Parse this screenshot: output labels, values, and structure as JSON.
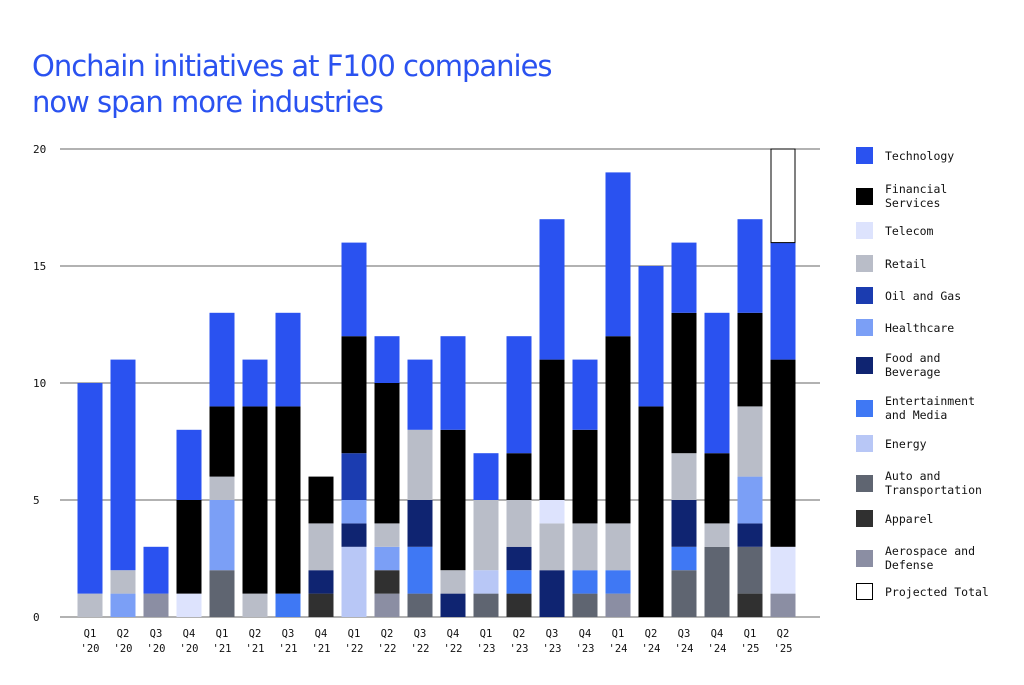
{
  "title": {
    "line1": "Onchain initiatives at F100 companies",
    "line2": "now span more industries"
  },
  "colors": {
    "title": "#2a52f0",
    "grid": "#333333"
  },
  "chart_data": {
    "type": "bar",
    "stacked": true,
    "categories": [
      "Q1\n'20",
      "Q2\n'20",
      "Q3\n'20",
      "Q4\n'20",
      "Q1\n'21",
      "Q2\n'21",
      "Q3\n'21",
      "Q4\n'21",
      "Q1\n'22",
      "Q2\n'22",
      "Q3\n'22",
      "Q4\n'22",
      "Q1\n'23",
      "Q2\n'23",
      "Q3\n'23",
      "Q4\n'23",
      "Q1\n'24",
      "Q2\n'24",
      "Q3\n'24",
      "Q4\n'24",
      "Q1\n'25",
      "Q2\n'25"
    ],
    "ylim": [
      0,
      20
    ],
    "yticks": [
      0,
      5,
      10,
      15,
      20
    ],
    "xlabel": "",
    "ylabel": "",
    "grid": true,
    "legend_position": "right",
    "series": [
      {
        "name": "Technology",
        "color": "#2a52f0",
        "values": [
          9,
          9,
          2,
          3,
          4,
          2,
          4,
          0,
          4,
          2,
          3,
          4,
          2,
          5,
          6,
          3,
          7,
          6,
          3,
          6,
          4,
          5
        ]
      },
      {
        "name": "Financial\nServices",
        "color": "#000000",
        "values": [
          0,
          0,
          0,
          4,
          3,
          8,
          8,
          2,
          5,
          6,
          0,
          6,
          0,
          2,
          6,
          4,
          8,
          9,
          6,
          3,
          4,
          8
        ]
      },
      {
        "name": "Telecom",
        "color": "#dde3fd",
        "values": [
          0,
          0,
          0,
          1,
          0,
          0,
          0,
          0,
          0,
          0,
          0,
          0,
          0,
          0,
          1,
          0,
          0,
          0,
          0,
          0,
          0,
          2
        ]
      },
      {
        "name": "Retail",
        "color": "#b9bdc8",
        "values": [
          1,
          1,
          0,
          0,
          1,
          1,
          0,
          2,
          0,
          1,
          3,
          1,
          3,
          2,
          2,
          2,
          2,
          0,
          2,
          1,
          3,
          0
        ]
      },
      {
        "name": "Oil and Gas",
        "color": "#1b3cb0",
        "values": [
          0,
          0,
          0,
          0,
          0,
          0,
          0,
          0,
          2,
          0,
          0,
          0,
          0,
          0,
          0,
          0,
          0,
          0,
          0,
          0,
          0,
          0
        ]
      },
      {
        "name": "Healthcare",
        "color": "#7b9ff6",
        "values": [
          0,
          1,
          0,
          0,
          3,
          0,
          0,
          0,
          1,
          1,
          0,
          0,
          0,
          0,
          0,
          0,
          0,
          0,
          0,
          0,
          2,
          0
        ]
      },
      {
        "name": "Food and\nBeverage",
        "color": "#0f2471",
        "values": [
          0,
          0,
          0,
          0,
          0,
          0,
          0,
          1,
          1,
          0,
          2,
          1,
          0,
          1,
          2,
          0,
          0,
          0,
          2,
          0,
          1,
          0
        ]
      },
      {
        "name": "Entertainment\nand Media",
        "color": "#3f78f4",
        "values": [
          0,
          0,
          0,
          0,
          0,
          0,
          1,
          0,
          0,
          0,
          2,
          0,
          0,
          1,
          0,
          1,
          1,
          0,
          1,
          0,
          0,
          0
        ]
      },
      {
        "name": "Energy",
        "color": "#b8c7f6",
        "values": [
          0,
          0,
          0,
          0,
          0,
          0,
          0,
          0,
          3,
          0,
          0,
          0,
          1,
          0,
          0,
          0,
          0,
          0,
          0,
          0,
          0,
          0
        ]
      },
      {
        "name": "Auto and\nTransportation",
        "color": "#5f6571",
        "values": [
          0,
          0,
          0,
          0,
          2,
          0,
          0,
          0,
          0,
          0,
          1,
          0,
          1,
          0,
          0,
          1,
          0,
          0,
          2,
          3,
          2,
          0
        ]
      },
      {
        "name": "Apparel",
        "color": "#303030",
        "values": [
          0,
          0,
          0,
          0,
          0,
          0,
          0,
          1,
          0,
          1,
          0,
          0,
          0,
          1,
          0,
          0,
          0,
          0,
          0,
          0,
          1,
          0
        ]
      },
      {
        "name": "Aerospace and\nDefense",
        "color": "#8b8ea3",
        "values": [
          0,
          0,
          1,
          0,
          0,
          0,
          0,
          0,
          0,
          1,
          0,
          0,
          0,
          0,
          0,
          0,
          1,
          0,
          0,
          0,
          0,
          1
        ]
      }
    ],
    "projected_total": {
      "name": "Projected Total",
      "category": "Q2\n'25",
      "value": 20,
      "color": "#ffffff",
      "border": "#000000"
    }
  }
}
